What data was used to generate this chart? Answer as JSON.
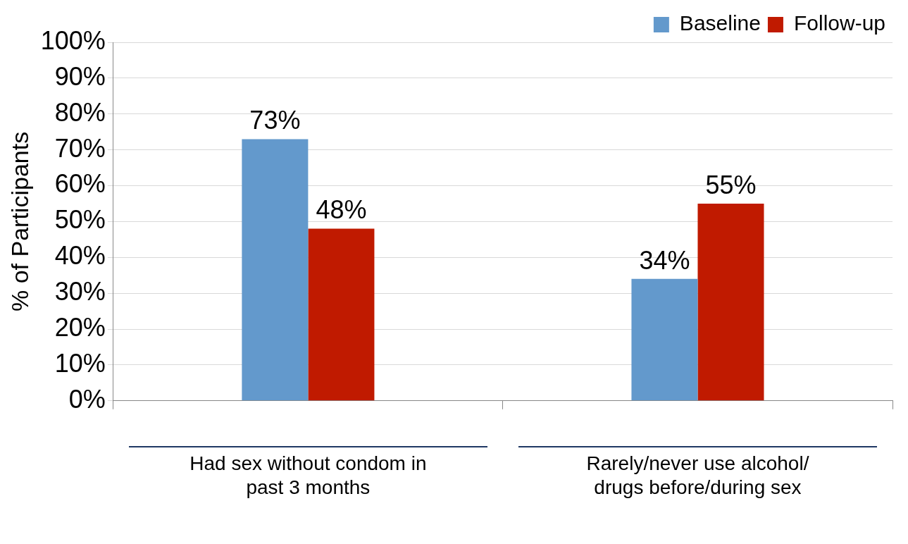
{
  "chart_data": {
    "type": "bar",
    "ylabel": "% of Participants",
    "categories": [
      "Had sex without condom in past 3 months",
      "Rarely/never use alcohol/drugs before/during sex"
    ],
    "series": [
      {
        "name": "Baseline",
        "color": "#6399cc",
        "values": [
          73,
          34
        ]
      },
      {
        "name": "Follow-up",
        "color": "#c01a00",
        "values": [
          48,
          55
        ]
      }
    ],
    "ylim": [
      0,
      100
    ],
    "yticks": [
      {
        "value": 0,
        "label": "0%"
      },
      {
        "value": 10,
        "label": "10%"
      },
      {
        "value": 20,
        "label": "20%"
      },
      {
        "value": 30,
        "label": "30%"
      },
      {
        "value": 40,
        "label": "40%"
      },
      {
        "value": 50,
        "label": "50%"
      },
      {
        "value": 60,
        "label": "60%"
      },
      {
        "value": 70,
        "label": "70%"
      },
      {
        "value": 80,
        "label": "80%"
      },
      {
        "value": 90,
        "label": "90%"
      },
      {
        "value": 100,
        "label": "100%"
      }
    ],
    "value_labels": [
      [
        "73%",
        "34%"
      ],
      [
        "48%",
        "55%"
      ]
    ],
    "grid": "y",
    "legend": "top right"
  }
}
